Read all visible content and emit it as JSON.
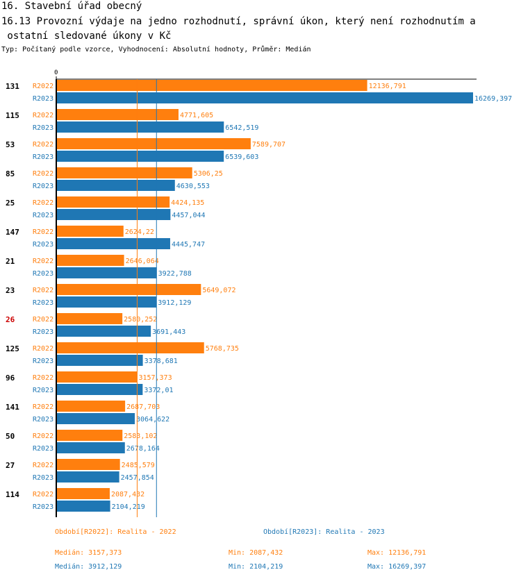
{
  "header": {
    "title": "16. Stavební úřad obecný",
    "subtitle_line1": "16.13 Provozní výdaje na jedno rozhodnutí, správní úkon, který není rozhodnutím a",
    "subtitle_line2": " ostatní sledované úkony v Kč",
    "info": "Typ: Počítaný podle vzorce, Vyhodnocení: Absolutní hodnoty, Průměr: Medián"
  },
  "colors": {
    "r2022": "#ff7f0e",
    "r2023": "#1f77b4",
    "highlight": "#cc0000"
  },
  "chart_data": {
    "type": "bar",
    "orientation": "horizontal",
    "x_tick_labels": [
      "0"
    ],
    "xlim": [
      0,
      16269.397
    ],
    "categories": [
      "131",
      "115",
      "53",
      "85",
      "25",
      "147",
      "21",
      "23",
      "26",
      "125",
      "96",
      "141",
      "50",
      "27",
      "114"
    ],
    "highlighted_category": "26",
    "series": [
      {
        "name": "R2022",
        "values": [
          12136.791,
          4771.605,
          7589.707,
          5306.25,
          4424.135,
          2624.22,
          2646.064,
          5649.072,
          2580.252,
          5768.735,
          3157.373,
          2687.703,
          2583.102,
          2485.579,
          2087.432
        ],
        "labels": [
          "12136,791",
          "4771,605",
          "7589,707",
          "5306,25",
          "4424,135",
          "2624,22",
          "2646,064",
          "5649,072",
          "2580,252",
          "5768,735",
          "3157,373",
          "2687,703",
          "2583,102",
          "2485,579",
          "2087,432"
        ]
      },
      {
        "name": "R2023",
        "values": [
          16269.397,
          6542.519,
          6539.603,
          4630.553,
          4457.044,
          4445.747,
          3922.788,
          3912.129,
          3691.443,
          3378.681,
          3372.01,
          3064.622,
          2678.164,
          2457.854,
          2104.219
        ],
        "labels": [
          "16269,397",
          "6542,519",
          "6539,603",
          "4630,553",
          "4457,044",
          "4445,747",
          "3922,788",
          "3912,129",
          "3691,443",
          "3378,681",
          "3372,01",
          "3064,622",
          "2678,164",
          "2457,854",
          "2104,219"
        ]
      }
    ],
    "median_lines": [
      {
        "series": "R2022",
        "value": 3157.373
      },
      {
        "series": "R2023",
        "value": 3912.129
      }
    ]
  },
  "footer": {
    "legend_2022": "Období[R2022]: Realita - 2022",
    "legend_2023": "Období[R2023]: Realita - 2023",
    "median_2022": "Medián: 3157,373",
    "min_2022": "Min: 2087,432",
    "max_2022": "Max: 12136,791",
    "median_2023": "Medián: 3912,129",
    "min_2023": "Min: 2104,219",
    "max_2023": "Max: 16269,397"
  }
}
